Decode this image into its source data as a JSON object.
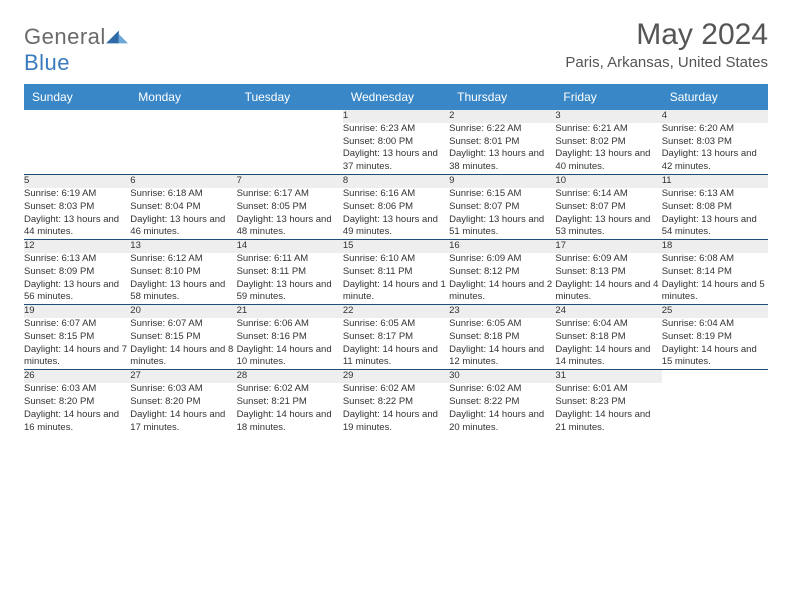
{
  "brand": {
    "name_a": "General",
    "name_b": "Blue"
  },
  "title": "May 2024",
  "location": "Paris, Arkansas, United States",
  "colors": {
    "header_bg": "#3a87c7",
    "header_text": "#ffffff",
    "daynum_bg": "#eeeeee",
    "row_border": "#1f4e79",
    "title_color": "#555555",
    "body_text": "#333333",
    "logo_gray": "#6a6a6a",
    "logo_blue": "#3a7bbf"
  },
  "typography": {
    "title_fontsize": 30,
    "location_fontsize": 15,
    "weekday_fontsize": 12,
    "daynum_fontsize": 11,
    "detail_fontsize": 9.5
  },
  "weekdays": [
    "Sunday",
    "Monday",
    "Tuesday",
    "Wednesday",
    "Thursday",
    "Friday",
    "Saturday"
  ],
  "weeks": [
    [
      null,
      null,
      null,
      {
        "n": "1",
        "sr": "6:23 AM",
        "ss": "8:00 PM",
        "dl": "13 hours and 37 minutes."
      },
      {
        "n": "2",
        "sr": "6:22 AM",
        "ss": "8:01 PM",
        "dl": "13 hours and 38 minutes."
      },
      {
        "n": "3",
        "sr": "6:21 AM",
        "ss": "8:02 PM",
        "dl": "13 hours and 40 minutes."
      },
      {
        "n": "4",
        "sr": "6:20 AM",
        "ss": "8:03 PM",
        "dl": "13 hours and 42 minutes."
      }
    ],
    [
      {
        "n": "5",
        "sr": "6:19 AM",
        "ss": "8:03 PM",
        "dl": "13 hours and 44 minutes."
      },
      {
        "n": "6",
        "sr": "6:18 AM",
        "ss": "8:04 PM",
        "dl": "13 hours and 46 minutes."
      },
      {
        "n": "7",
        "sr": "6:17 AM",
        "ss": "8:05 PM",
        "dl": "13 hours and 48 minutes."
      },
      {
        "n": "8",
        "sr": "6:16 AM",
        "ss": "8:06 PM",
        "dl": "13 hours and 49 minutes."
      },
      {
        "n": "9",
        "sr": "6:15 AM",
        "ss": "8:07 PM",
        "dl": "13 hours and 51 minutes."
      },
      {
        "n": "10",
        "sr": "6:14 AM",
        "ss": "8:07 PM",
        "dl": "13 hours and 53 minutes."
      },
      {
        "n": "11",
        "sr": "6:13 AM",
        "ss": "8:08 PM",
        "dl": "13 hours and 54 minutes."
      }
    ],
    [
      {
        "n": "12",
        "sr": "6:13 AM",
        "ss": "8:09 PM",
        "dl": "13 hours and 56 minutes."
      },
      {
        "n": "13",
        "sr": "6:12 AM",
        "ss": "8:10 PM",
        "dl": "13 hours and 58 minutes."
      },
      {
        "n": "14",
        "sr": "6:11 AM",
        "ss": "8:11 PM",
        "dl": "13 hours and 59 minutes."
      },
      {
        "n": "15",
        "sr": "6:10 AM",
        "ss": "8:11 PM",
        "dl": "14 hours and 1 minute."
      },
      {
        "n": "16",
        "sr": "6:09 AM",
        "ss": "8:12 PM",
        "dl": "14 hours and 2 minutes."
      },
      {
        "n": "17",
        "sr": "6:09 AM",
        "ss": "8:13 PM",
        "dl": "14 hours and 4 minutes."
      },
      {
        "n": "18",
        "sr": "6:08 AM",
        "ss": "8:14 PM",
        "dl": "14 hours and 5 minutes."
      }
    ],
    [
      {
        "n": "19",
        "sr": "6:07 AM",
        "ss": "8:15 PM",
        "dl": "14 hours and 7 minutes."
      },
      {
        "n": "20",
        "sr": "6:07 AM",
        "ss": "8:15 PM",
        "dl": "14 hours and 8 minutes."
      },
      {
        "n": "21",
        "sr": "6:06 AM",
        "ss": "8:16 PM",
        "dl": "14 hours and 10 minutes."
      },
      {
        "n": "22",
        "sr": "6:05 AM",
        "ss": "8:17 PM",
        "dl": "14 hours and 11 minutes."
      },
      {
        "n": "23",
        "sr": "6:05 AM",
        "ss": "8:18 PM",
        "dl": "14 hours and 12 minutes."
      },
      {
        "n": "24",
        "sr": "6:04 AM",
        "ss": "8:18 PM",
        "dl": "14 hours and 14 minutes."
      },
      {
        "n": "25",
        "sr": "6:04 AM",
        "ss": "8:19 PM",
        "dl": "14 hours and 15 minutes."
      }
    ],
    [
      {
        "n": "26",
        "sr": "6:03 AM",
        "ss": "8:20 PM",
        "dl": "14 hours and 16 minutes."
      },
      {
        "n": "27",
        "sr": "6:03 AM",
        "ss": "8:20 PM",
        "dl": "14 hours and 17 minutes."
      },
      {
        "n": "28",
        "sr": "6:02 AM",
        "ss": "8:21 PM",
        "dl": "14 hours and 18 minutes."
      },
      {
        "n": "29",
        "sr": "6:02 AM",
        "ss": "8:22 PM",
        "dl": "14 hours and 19 minutes."
      },
      {
        "n": "30",
        "sr": "6:02 AM",
        "ss": "8:22 PM",
        "dl": "14 hours and 20 minutes."
      },
      {
        "n": "31",
        "sr": "6:01 AM",
        "ss": "8:23 PM",
        "dl": "14 hours and 21 minutes."
      },
      null
    ]
  ],
  "labels": {
    "sunrise": "Sunrise:",
    "sunset": "Sunset:",
    "daylight": "Daylight:"
  }
}
